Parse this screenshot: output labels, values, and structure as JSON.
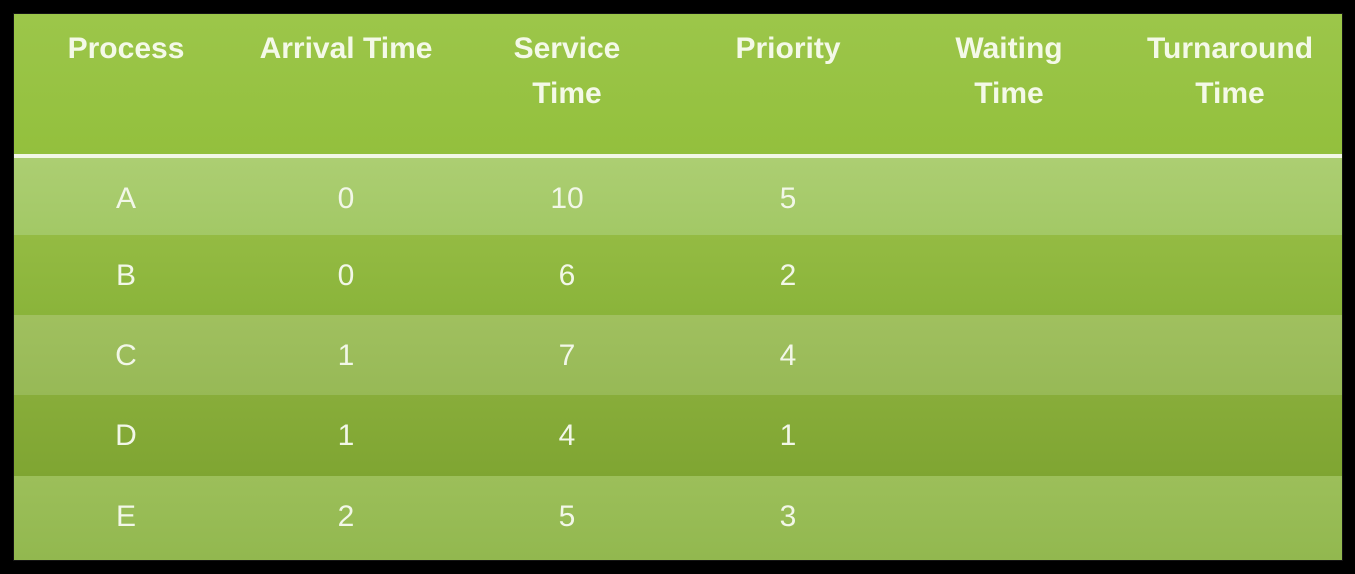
{
  "table": {
    "headers": [
      "Process",
      "Arrival Time",
      "Service\nTime",
      "Priority",
      "Waiting\nTime",
      "Turnaround\nTime"
    ],
    "rows": [
      {
        "process": "A",
        "arrival": "0",
        "service": "10",
        "priority": "5",
        "waiting": "",
        "turnaround": ""
      },
      {
        "process": "B",
        "arrival": "0",
        "service": "6",
        "priority": "2",
        "waiting": "",
        "turnaround": ""
      },
      {
        "process": "C",
        "arrival": "1",
        "service": "7",
        "priority": "4",
        "waiting": "",
        "turnaround": ""
      },
      {
        "process": "D",
        "arrival": "1",
        "service": "4",
        "priority": "1",
        "waiting": "",
        "turnaround": ""
      },
      {
        "process": "E",
        "arrival": "2",
        "service": "5",
        "priority": "3",
        "waiting": "",
        "turnaround": ""
      }
    ]
  },
  "colors": {
    "header_bg": "#99c445",
    "divider": "#f2f7e6",
    "text": "#f4f9e8",
    "page_bg": "#000000"
  }
}
